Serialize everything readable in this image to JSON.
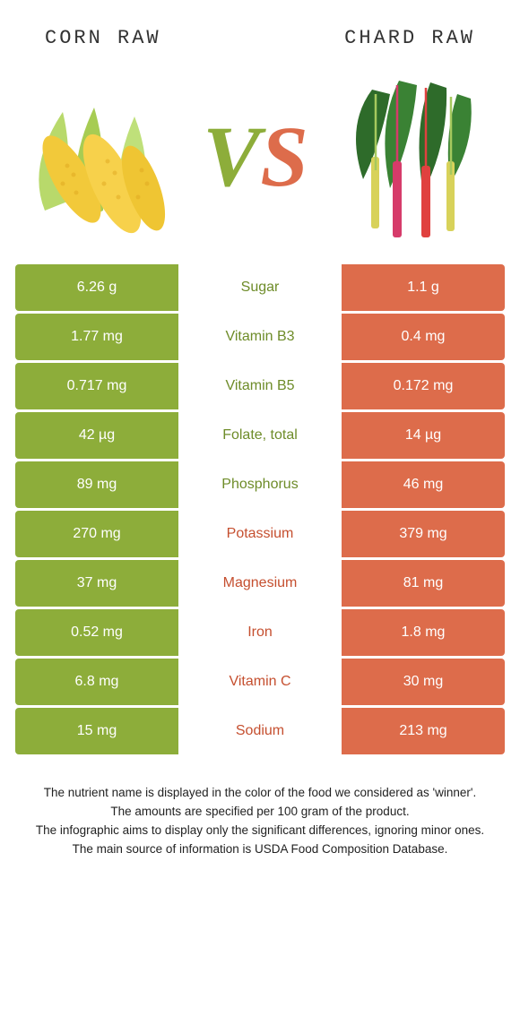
{
  "header": {
    "left_title": "CORN RAW",
    "right_title": "CHARD RAW"
  },
  "vs": {
    "v": "V",
    "s": "S"
  },
  "colors": {
    "green": "#8dad3a",
    "orange": "#dd6c4b",
    "label_green": "#6e8c29",
    "label_orange": "#c54f2f"
  },
  "rows": [
    {
      "left": "6.26 g",
      "label": "Sugar",
      "right": "1.1 g",
      "winner": "left"
    },
    {
      "left": "1.77 mg",
      "label": "Vitamin B3",
      "right": "0.4 mg",
      "winner": "left"
    },
    {
      "left": "0.717 mg",
      "label": "Vitamin B5",
      "right": "0.172 mg",
      "winner": "left"
    },
    {
      "left": "42 µg",
      "label": "Folate, total",
      "right": "14 µg",
      "winner": "left"
    },
    {
      "left": "89 mg",
      "label": "Phosphorus",
      "right": "46 mg",
      "winner": "left"
    },
    {
      "left": "270 mg",
      "label": "Potassium",
      "right": "379 mg",
      "winner": "right"
    },
    {
      "left": "37 mg",
      "label": "Magnesium",
      "right": "81 mg",
      "winner": "right"
    },
    {
      "left": "0.52 mg",
      "label": "Iron",
      "right": "1.8 mg",
      "winner": "right"
    },
    {
      "left": "6.8 mg",
      "label": "Vitamin C",
      "right": "30 mg",
      "winner": "right"
    },
    {
      "left": "15 mg",
      "label": "Sodium",
      "right": "213 mg",
      "winner": "right"
    }
  ],
  "footnotes": [
    "The nutrient name is displayed in the color of the food we considered as 'winner'.",
    "The amounts are specified per 100 gram of the product.",
    "The infographic aims to display only the significant differences, ignoring minor ones.",
    "The main source of information is USDA Food Composition Database."
  ]
}
